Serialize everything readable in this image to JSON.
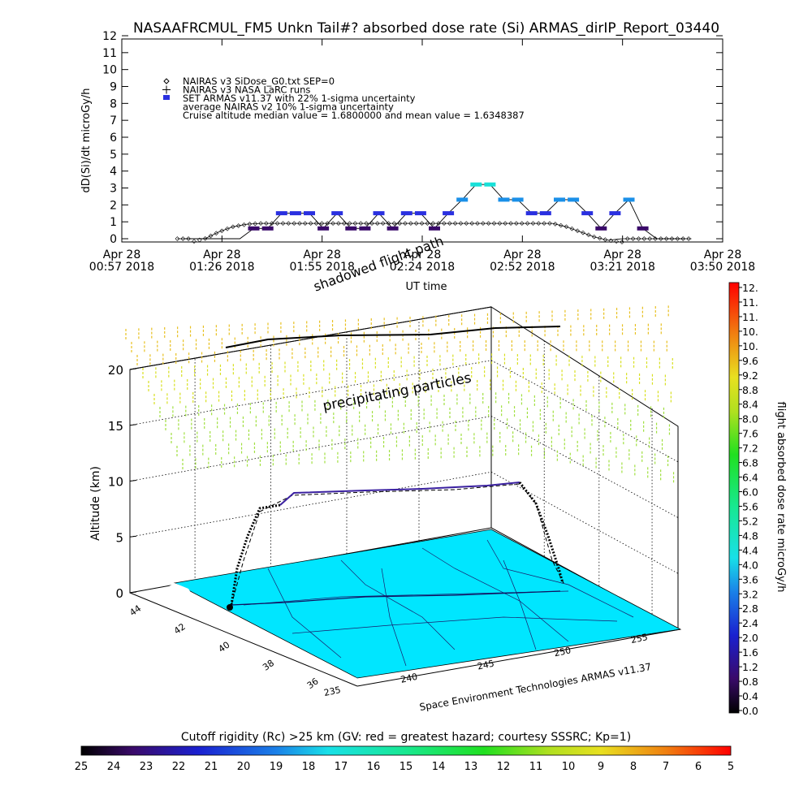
{
  "title": "NASAAFRCMUL_FM5 Unkn Tail#? absorbed dose rate (Si) ARMAS_dirIP_Report_03440",
  "chart_data": [
    {
      "type": "line",
      "ylabel": "dD(Si)/dt microGy/h",
      "xlabel": "UT time",
      "ylim": [
        0,
        12
      ],
      "yticks": [
        "0",
        "1",
        "2",
        "3",
        "4",
        "5",
        "6",
        "7",
        "8",
        "9",
        "10",
        "11",
        "12"
      ],
      "xtick_labels": [
        {
          "date": "Apr 28",
          "time": "00:57 2018"
        },
        {
          "date": "Apr 28",
          "time": "01:26 2018"
        },
        {
          "date": "Apr 28",
          "time": "01:55 2018"
        },
        {
          "date": "Apr 28",
          "time": "02:24 2018"
        },
        {
          "date": "Apr 28",
          "time": "02:52 2018"
        },
        {
          "date": "Apr 28",
          "time": "03:21 2018"
        },
        {
          "date": "Apr 28",
          "time": "03:50 2018"
        }
      ],
      "xlim_minutes": [
        0,
        173
      ],
      "legend": [
        {
          "label": "NAIRAS v3 SiDose_G0.txt SEP=0",
          "marker": "diamond"
        },
        {
          "label": "NAIRAS v3 NASA LaRC runs",
          "marker": "plus"
        },
        {
          "label": "SET ARMAS v11.37 with 22% 1-sigma uncertainty",
          "marker": "square"
        },
        {
          "label": "average NAIRAS v2 10% 1-sigma uncertainty",
          "marker": "none"
        },
        {
          "label": "Cruise altitude median value = 1.6800000 and mean value = 1.6348387",
          "marker": "none"
        }
      ],
      "series": [
        {
          "name": "NAIRAS v3 SiDose_G0.txt SEP=0",
          "color": "#000000",
          "x": [
            16,
            20,
            24,
            28,
            32,
            36,
            40,
            44,
            48,
            52,
            56,
            60,
            64,
            68,
            72,
            76,
            80,
            84,
            88,
            92,
            96,
            100,
            104,
            108,
            112,
            116,
            120,
            124,
            128,
            132,
            136,
            140,
            144,
            148,
            152,
            156,
            160,
            164
          ],
          "y": [
            0,
            0,
            0.2,
            0.6,
            0.9,
            1.05,
            1.1,
            1.1,
            1.1,
            1.1,
            1.1,
            1.1,
            1.1,
            1.1,
            1.1,
            1.1,
            1.1,
            1.1,
            1.1,
            1.1,
            1.1,
            1.1,
            1.1,
            1.1,
            1.1,
            1.1,
            1.1,
            1.1,
            0.9,
            0.6,
            0.3,
            0.1,
            0,
            0,
            0,
            0,
            0,
            0
          ]
        },
        {
          "name": "SET ARMAS v11.37 with 22% 1-sigma uncertainty",
          "x": [
            18,
            22,
            26,
            30,
            34,
            38,
            42,
            46,
            50,
            54,
            58,
            62,
            66,
            70,
            74,
            78,
            82,
            86,
            90,
            94,
            98,
            102,
            106,
            110,
            114,
            118,
            122,
            126,
            130,
            134,
            138,
            142,
            146,
            150,
            154,
            158,
            162
          ],
          "y": [
            0,
            0,
            0,
            0,
            0,
            0.8,
            0.8,
            1.7,
            1.7,
            1.7,
            0.8,
            1.7,
            0.8,
            0.8,
            1.7,
            0.8,
            1.7,
            1.7,
            0.8,
            1.7,
            2.5,
            3.4,
            3.4,
            2.5,
            2.5,
            1.7,
            1.7,
            2.5,
            2.5,
            1.7,
            0.8,
            1.7,
            2.5,
            0.8,
            0,
            0,
            0
          ],
          "err_low": [],
          "err_high": []
        }
      ],
      "annotations": [
        {
          "text": "shadowed flight path"
        }
      ]
    },
    {
      "type": "heatmap",
      "zlabel": "Altitude (km)",
      "zticks": [
        "0",
        "5",
        "10",
        "15",
        "20"
      ],
      "lat_ticks": [
        "36",
        "38",
        "40",
        "42",
        "44"
      ],
      "lon_ticks": [
        "235",
        "240",
        "245",
        "250",
        "255"
      ],
      "annotations": [
        {
          "text": "precipitating particles"
        },
        {
          "text": "Space Environment Technologies ARMAS v11.37"
        }
      ]
    }
  ],
  "dose_colorbar": {
    "label": "flight absorbed dose rate microGy/h",
    "ticks": [
      "0.0",
      "0.4",
      "0.8",
      "1.2",
      "1.6",
      "2.0",
      "2.4",
      "2.8",
      "3.2",
      "3.6",
      "4.0",
      "4.4",
      "4.8",
      "5.2",
      "5.6",
      "6.0",
      "6.4",
      "6.8",
      "7.2",
      "7.6",
      "8.0",
      "8.4",
      "8.8",
      "9.2",
      "9.6",
      "10.",
      "10.",
      "11.",
      "11.",
      "12."
    ]
  },
  "rigidity_colorbar": {
    "label": "Cutoff rigidity (Rc) >25 km (GV: red = greatest hazard; courtesy SSSRC; Kp=1)",
    "ticks": [
      "25",
      "24",
      "23",
      "22",
      "21",
      "20",
      "19",
      "18",
      "17",
      "16",
      "15",
      "14",
      "13",
      "12",
      "11",
      "10",
      "9",
      "8",
      "7",
      "6",
      "5"
    ]
  }
}
